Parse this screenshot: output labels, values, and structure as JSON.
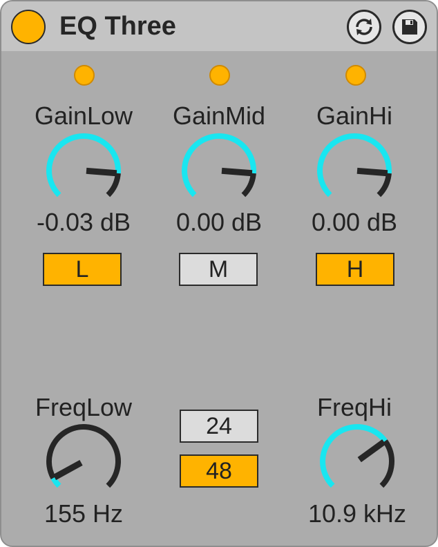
{
  "device": {
    "title": "EQ Three"
  },
  "colors": {
    "accent": "#ffb300",
    "knob_arc": "#19e6f0",
    "panel": "#acacac"
  },
  "bands": [
    {
      "label": "GainLow",
      "value": "-0.03 dB",
      "kill_label": "L",
      "kill_on": true,
      "knob_fraction": 0.85
    },
    {
      "label": "GainMid",
      "value": "0.00 dB",
      "kill_label": "M",
      "kill_on": false,
      "knob_fraction": 0.85
    },
    {
      "label": "GainHi",
      "value": "0.00 dB",
      "kill_label": "H",
      "kill_on": true,
      "knob_fraction": 0.85
    }
  ],
  "freq_low": {
    "label": "FreqLow",
    "value": "155 Hz",
    "knob_fraction": 0.06
  },
  "freq_hi": {
    "label": "FreqHi",
    "value": "10.9 kHz",
    "knob_fraction": 0.7
  },
  "slope": {
    "options": [
      "24",
      "48"
    ],
    "selected": "48"
  },
  "icons": {
    "power": "power-icon",
    "hot_swap": "hot-swap-icon",
    "save_preset": "save-icon"
  }
}
